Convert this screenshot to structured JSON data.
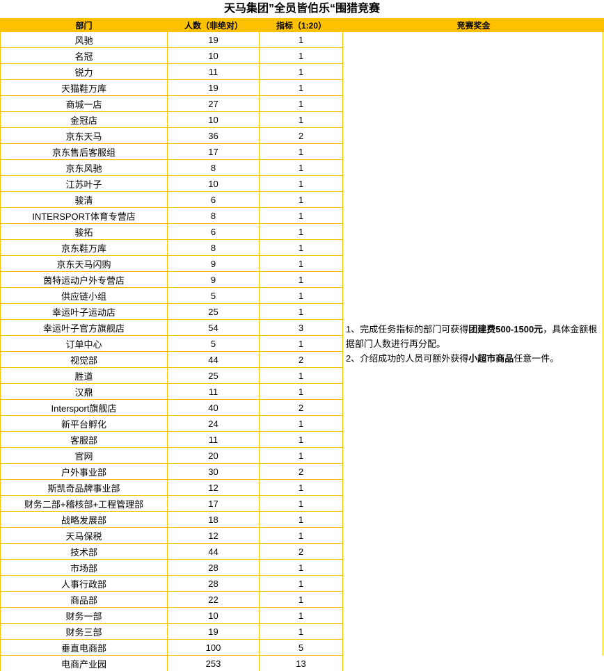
{
  "title": "天马集团”全员皆伯乐“围猎竞赛",
  "colors": {
    "header_bg": "#FFC000",
    "grid": "#FFC000",
    "text": "#000000"
  },
  "table": {
    "headers": [
      "部门",
      "人数（非绝对）",
      "指标（1:20）",
      "竞赛奖金"
    ],
    "rows": [
      [
        "风驰",
        "19",
        "1"
      ],
      [
        "名冠",
        "10",
        "1"
      ],
      [
        "锐力",
        "11",
        "1"
      ],
      [
        "天猫鞋万库",
        "19",
        "1"
      ],
      [
        "商城一店",
        "27",
        "1"
      ],
      [
        "金冠店",
        "10",
        "1"
      ],
      [
        "京东天马",
        "36",
        "2"
      ],
      [
        "京东售后客服组",
        "17",
        "1"
      ],
      [
        "京东风驰",
        "8",
        "1"
      ],
      [
        "江苏叶子",
        "10",
        "1"
      ],
      [
        "骏清",
        "6",
        "1"
      ],
      [
        "INTERSPORT体育专营店",
        "8",
        "1"
      ],
      [
        "骏拓",
        "6",
        "1"
      ],
      [
        "京东鞋万库",
        "8",
        "1"
      ],
      [
        "京东天马闪购",
        "9",
        "1"
      ],
      [
        "茵特运动户外专营店",
        "9",
        "1"
      ],
      [
        "供应链小组",
        "5",
        "1"
      ],
      [
        "幸运叶子运动店",
        "25",
        "1"
      ],
      [
        "幸运叶子官方旗舰店",
        "54",
        "3"
      ],
      [
        "订单中心",
        "5",
        "1"
      ],
      [
        "视觉部",
        "44",
        "2"
      ],
      [
        "胜道",
        "25",
        "1"
      ],
      [
        "汉鼎",
        "11",
        "1"
      ],
      [
        "Intersport旗舰店",
        "40",
        "2"
      ],
      [
        "新平台孵化",
        "24",
        "1"
      ],
      [
        "客服部",
        "11",
        "1"
      ],
      [
        "官网",
        "20",
        "1"
      ],
      [
        "户外事业部",
        "30",
        "2"
      ],
      [
        "斯凯奇品牌事业部",
        "12",
        "1"
      ],
      [
        "财务二部+稽核部+工程管理部",
        "17",
        "1"
      ],
      [
        "战略发展部",
        "18",
        "1"
      ],
      [
        "天马保税",
        "12",
        "1"
      ],
      [
        "技术部",
        "44",
        "2"
      ],
      [
        "市场部",
        "28",
        "1"
      ],
      [
        "人事行政部",
        "28",
        "1"
      ],
      [
        "商品部",
        "22",
        "1"
      ],
      [
        "财务一部",
        "10",
        "1"
      ],
      [
        "财务三部",
        "19",
        "1"
      ],
      [
        "垂直电商部",
        "100",
        "5"
      ],
      [
        "电商产业园",
        "253",
        "13"
      ]
    ]
  },
  "prize": {
    "items": [
      {
        "prefix": "1、完成任务指标的部门可获得",
        "bold": "团建费500-1500元",
        "suffix": "，具体金额根据部门人数进行再分配。"
      },
      {
        "prefix": "2、介绍成功的人员可额外获得",
        "bold": "小超市商品",
        "suffix": "任意一件。"
      }
    ]
  }
}
